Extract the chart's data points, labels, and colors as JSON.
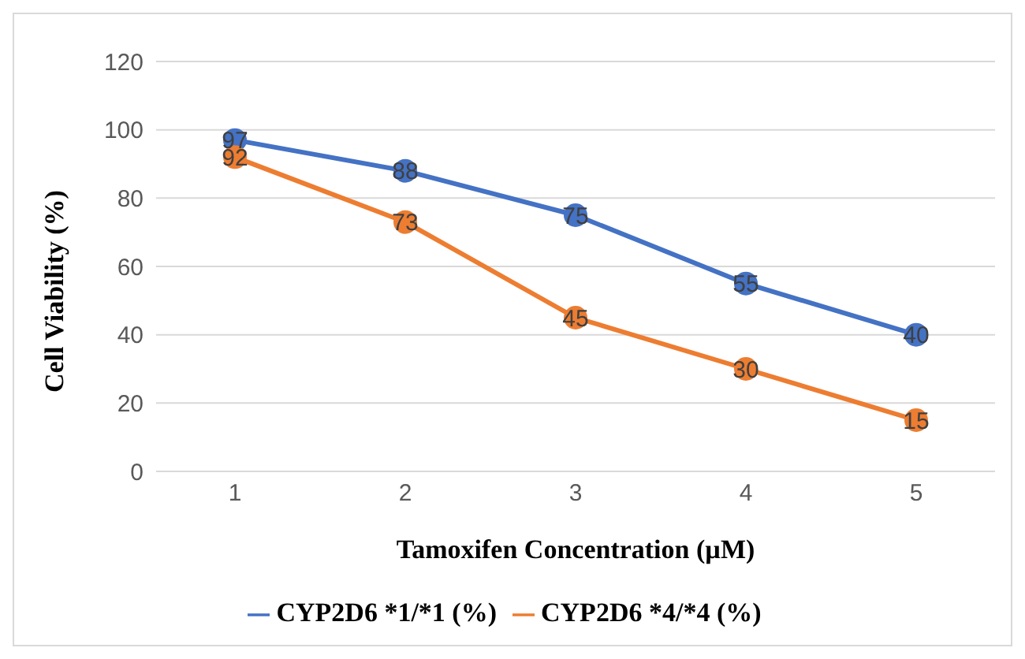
{
  "chart_data": {
    "type": "line",
    "xlabel": "Tamoxifen Concentration (µM)",
    "ylabel": "Cell Viability (%)",
    "categories": [
      "1",
      "2",
      "3",
      "4",
      "5"
    ],
    "series": [
      {
        "name": "CYP2D6 *1/*1 (%)",
        "color": "#4472c4",
        "values": [
          97,
          88,
          75,
          55,
          40
        ]
      },
      {
        "name": "CYP2D6 *4/*4 (%)",
        "color": "#ed7d31",
        "values": [
          92,
          73,
          45,
          30,
          15
        ]
      }
    ],
    "ylim": [
      0,
      120
    ],
    "yticks": [
      0,
      20,
      40,
      60,
      80,
      100,
      120
    ],
    "grid": "y",
    "legend": "bottom",
    "marker": "circle",
    "line_style": "solid",
    "data_labels": true
  }
}
